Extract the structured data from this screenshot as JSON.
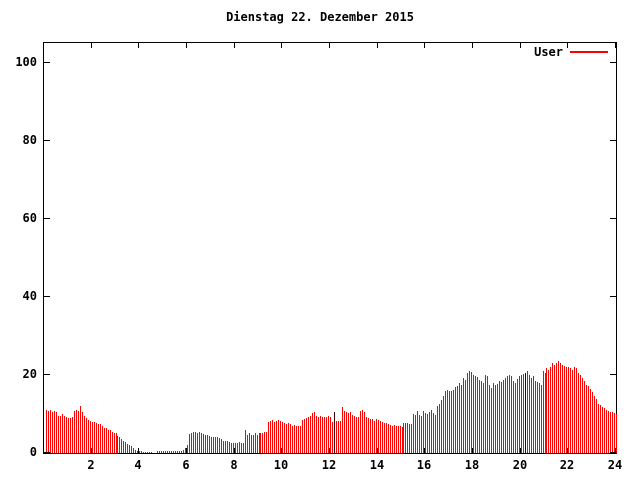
{
  "title": "Dienstag 22. Dezember 2015",
  "legend": {
    "label": "User",
    "color": "#ff0000",
    "position": "top-right-inside"
  },
  "colors": {
    "background": "#ffffff",
    "border": "#000000",
    "text": "#000000",
    "bar": "#ff0000",
    "dark_bar": "#400000"
  },
  "chart_data": {
    "type": "bar",
    "title": "Dienstag 22. Dezember 2015",
    "series_name": "User",
    "xlabel": "",
    "ylabel": "",
    "xlim": [
      0,
      24
    ],
    "ylim": [
      0,
      105
    ],
    "grid": false,
    "legend_position": "top-right",
    "xticks": [
      2,
      4,
      6,
      8,
      10,
      12,
      14,
      16,
      18,
      20,
      22,
      24
    ],
    "xtick_labels": [
      "2",
      "4",
      "6",
      "8",
      "10",
      "12",
      "14",
      "16",
      "18",
      "20",
      "22",
      "24"
    ],
    "yticks": [
      0,
      20,
      40,
      60,
      80,
      100
    ],
    "ytick_labels": [
      "0",
      "20",
      "40",
      "60",
      "80",
      "100"
    ],
    "sample_interval_minutes": 5,
    "first_sample_minutes": 5,
    "dark_indices": [
      145,
      241
    ],
    "values": [
      11,
      10.8,
      11,
      10.5,
      10.7,
      10.5,
      9.5,
      9.6,
      10,
      9.5,
      9.2,
      9,
      9,
      9.2,
      10.8,
      11,
      10.8,
      12,
      10.5,
      9.5,
      9,
      8.5,
      8.3,
      8,
      8,
      7.8,
      7.5,
      7.3,
      7,
      6.5,
      6.3,
      6,
      5.8,
      5.5,
      5.2,
      5,
      4.3,
      4,
      3.5,
      3,
      2.7,
      2.3,
      2,
      1.7,
      1.2,
      0.8,
      0.6,
      0.5,
      0.4,
      0.35,
      0.3,
      0.3,
      0.25,
      0.25,
      0,
      0,
      0.5,
      0.5,
      0.55,
      0.5,
      0.5,
      0.5,
      0.6,
      0.5,
      0.5,
      0.6,
      0.5,
      0.5,
      0.6,
      0.8,
      1.2,
      2,
      4.8,
      5,
      5.3,
      5.5,
      5.2,
      5.4,
      5,
      4.9,
      4.7,
      4.5,
      4.4,
      4.2,
      4,
      4,
      4.2,
      3.8,
      3.5,
      3,
      3,
      3,
      2.8,
      2.5,
      2.5,
      2.6,
      2.5,
      2.8,
      2.5,
      2.6,
      6,
      4.5,
      5,
      4.6,
      4.5,
      5,
      4.7,
      5,
      5,
      5.2,
      5.5,
      5.3,
      8,
      8.2,
      8.5,
      8,
      8.1,
      8.4,
      8.2,
      8,
      7.7,
      7.5,
      7.6,
      7.3,
      7,
      7.1,
      7,
      6.9,
      7,
      8.5,
      8.6,
      9,
      9.3,
      9.5,
      10.3,
      10.5,
      9.5,
      9.3,
      9.4,
      9.2,
      9.3,
      9.2,
      9.4,
      9.2,
      8,
      10.5,
      8.2,
      8.1,
      8.3,
      11.9,
      10.8,
      10.5,
      10.2,
      10.4,
      9.8,
      9.4,
      9.2,
      9.3,
      10.7,
      11,
      10.5,
      9.2,
      9,
      8.8,
      8.6,
      8.3,
      8.7,
      8.5,
      8.2,
      7.9,
      7.8,
      7.6,
      7.4,
      7.2,
      7,
      7.2,
      7,
      6.9,
      6.8,
      6.7,
      7.8,
      7.6,
      7.7,
      7.5,
      7.4,
      10,
      9.7,
      10.7,
      9.7,
      9.6,
      10.7,
      10.3,
      10,
      10.5,
      11,
      10.2,
      9.8,
      12,
      12.5,
      13.7,
      14.5,
      16,
      16.2,
      15.8,
      16,
      16.1,
      17,
      17.2,
      17.9,
      17.5,
      19.2,
      18.8,
      20.5,
      21,
      20.8,
      20.1,
      19.7,
      19.4,
      18.8,
      18.4,
      17.9,
      20.1,
      19.7,
      17.5,
      16.6,
      17.9,
      17.5,
      17.7,
      18.4,
      18.2,
      18.8,
      19.2,
      19.6,
      20.1,
      19.7,
      18.4,
      17.9,
      19,
      19.7,
      20.1,
      20.3,
      20.5,
      20.9,
      20.1,
      19.2,
      19.7,
      18.4,
      18.2,
      18,
      17.5,
      20.9,
      20.5,
      21.8,
      21.3,
      22,
      23,
      22.6,
      23.1,
      23.5,
      23,
      22.6,
      22.3,
      22.1,
      21.9,
      21.8,
      21.3,
      22.1,
      21.8,
      20.5,
      20.1,
      19.2,
      18.4,
      17.5,
      17.1,
      16.3,
      15.5,
      14.6,
      13.8,
      12.6,
      12.2,
      11.8,
      11.4,
      11,
      10.8,
      10.6,
      10.4,
      10.2,
      10
    ]
  }
}
